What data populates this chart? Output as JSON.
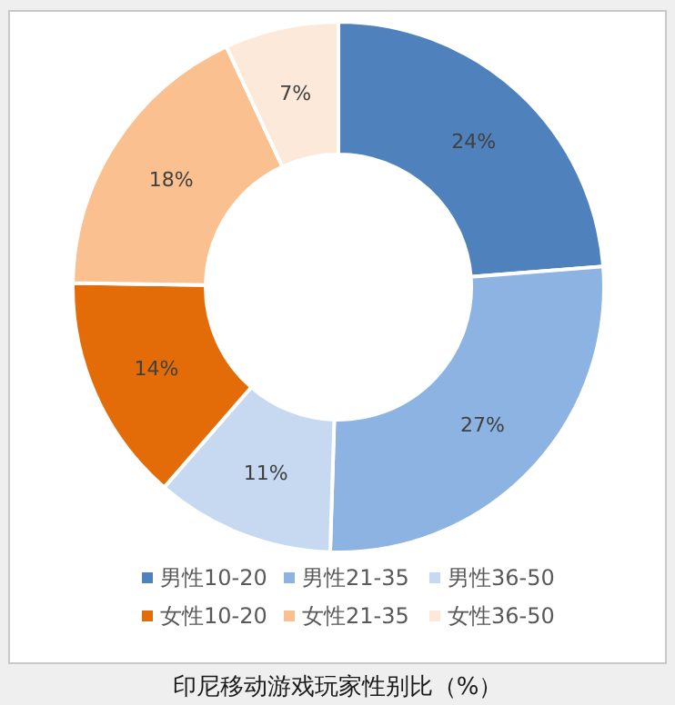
{
  "chart_data": {
    "type": "donut",
    "title": "印尼移动游戏玩家性别比（%）",
    "categories": [
      "男性10-20",
      "男性21-35",
      "男性36-50",
      "女性10-20",
      "女性21-35",
      "女性36-50"
    ],
    "values": [
      24,
      27,
      11,
      14,
      18,
      7
    ],
    "colors": [
      "#4f81bd",
      "#8db3e2",
      "#c6d9f0",
      "#e36c09",
      "#fac08f",
      "#fde9d9"
    ],
    "value_labels": [
      "24%",
      "27%",
      "11%",
      "14%",
      "18%",
      "7%"
    ],
    "legend": "bottom"
  }
}
